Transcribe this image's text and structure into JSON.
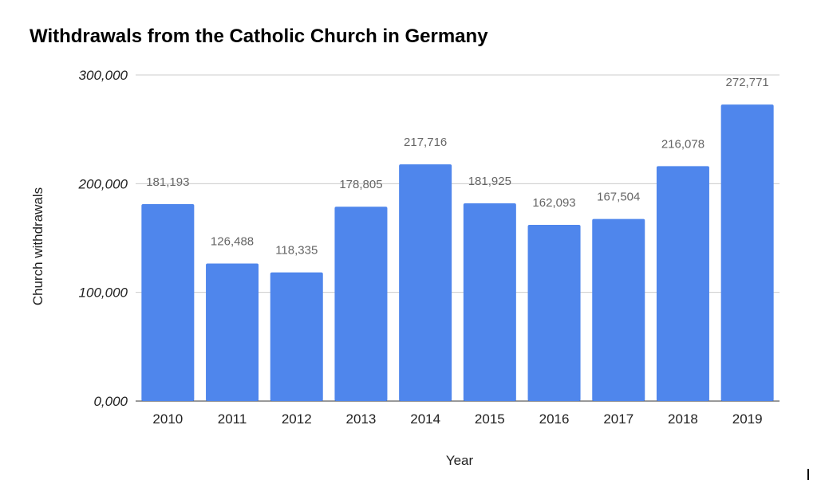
{
  "chart_data": {
    "type": "bar",
    "title": "Withdrawals from the Catholic Church in Germany",
    "xlabel": "Year",
    "ylabel": "Church withdrawals",
    "categories": [
      "2010",
      "2011",
      "2012",
      "2013",
      "2014",
      "2015",
      "2016",
      "2017",
      "2018",
      "2019"
    ],
    "values": [
      181193,
      126488,
      118335,
      178805,
      217716,
      181925,
      162093,
      167504,
      216078,
      272771
    ],
    "data_labels": [
      "181,193",
      "126,488",
      "118,335",
      "178,805",
      "217,716",
      "181,925",
      "162,093",
      "167,504",
      "216,078",
      "272,771"
    ],
    "yticks": [
      0,
      100000,
      200000,
      300000
    ],
    "ytick_labels": [
      "0,000",
      "100,000",
      "200,000",
      "300,000"
    ],
    "ylim": [
      0,
      300000
    ],
    "grid": true,
    "legend": "none",
    "bar_color": "#4f86ec",
    "grid_color": "#cccccc"
  }
}
